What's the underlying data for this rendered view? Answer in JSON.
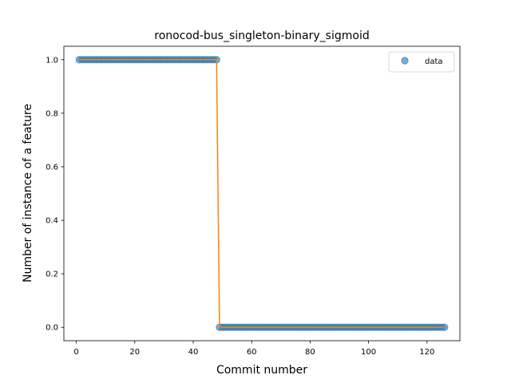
{
  "chart_data": {
    "type": "scatter",
    "title": "ronocod-bus_singleton-binary_sigmoid",
    "xlabel": "Commit number",
    "ylabel": "Number of instance of a feature",
    "xlim": [
      -4.25,
      131.25
    ],
    "ylim": [
      -0.05,
      1.05
    ],
    "xticks": [
      0,
      20,
      40,
      60,
      80,
      100,
      120
    ],
    "yticks": [
      0.0,
      0.2,
      0.4,
      0.6,
      0.8,
      1.0
    ],
    "xtick_labels": [
      "0",
      "20",
      "40",
      "60",
      "80",
      "100",
      "120"
    ],
    "ytick_labels": [
      "0.0",
      "0.2",
      "0.4",
      "0.6",
      "0.8",
      "1.0"
    ],
    "legend_position": "top-right",
    "grid": false,
    "series": [
      {
        "name": "data",
        "kind": "points",
        "color": "#1f77b4",
        "x_start": 1,
        "x_end": 126,
        "segments": [
          {
            "from": 1,
            "to": 48,
            "y": 1
          },
          {
            "from": 49,
            "to": 126,
            "y": 0
          }
        ]
      },
      {
        "kind": "line",
        "color": "#ff7f0e",
        "x": [
          1,
          48,
          49,
          126
        ],
        "y": [
          1,
          1,
          0,
          0
        ]
      }
    ]
  }
}
